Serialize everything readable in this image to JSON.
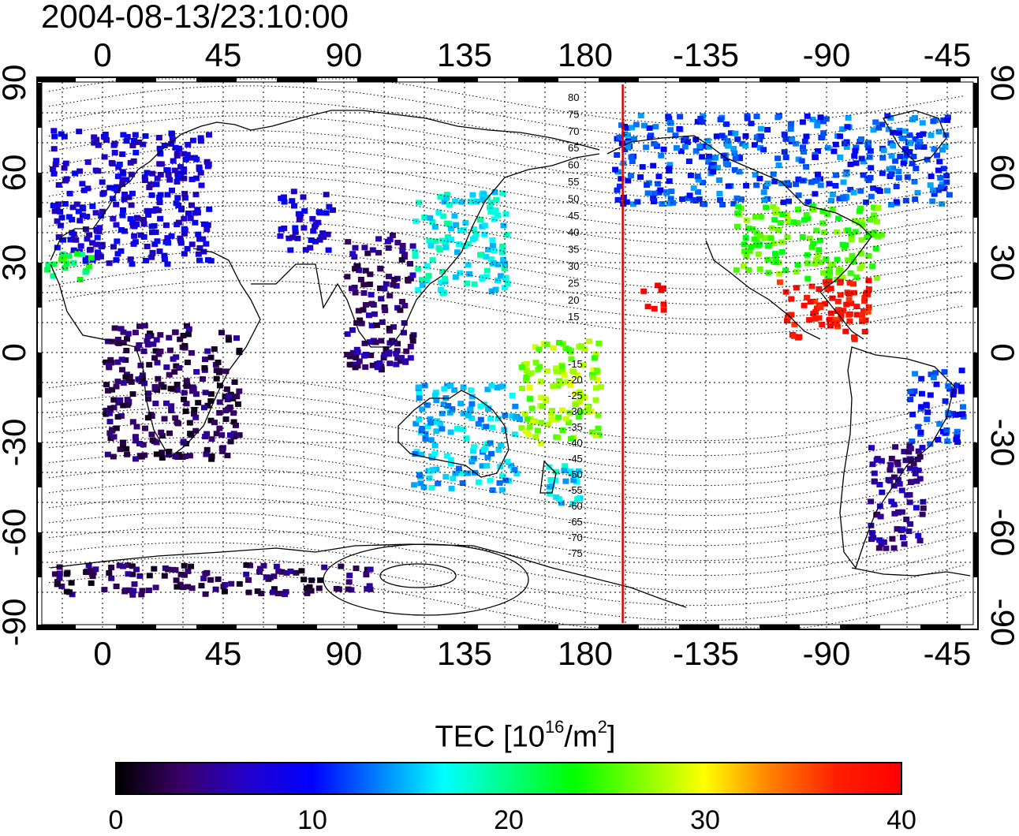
{
  "header": {
    "timestamp": "2004-08-13/23:10:00"
  },
  "map": {
    "lon_ticks": [
      "0",
      "45",
      "90",
      "135",
      "180",
      "-135",
      "-90",
      "-45"
    ],
    "lat_ticks": [
      "90",
      "60",
      "30",
      "0",
      "-30",
      "-60",
      "-90"
    ],
    "dip_latitude_labels": [
      "80",
      "75",
      "70",
      "65",
      "60",
      "55",
      "50",
      "45",
      "40",
      "35",
      "30",
      "25",
      "20",
      "15",
      "-15",
      "-20",
      "-25",
      "-30",
      "-35",
      "-40",
      "-45",
      "-50",
      "-55",
      "-60",
      "-65",
      "-70",
      "-75"
    ],
    "marker_line": {
      "longitude": 194,
      "color": "#dd0000"
    }
  },
  "colorbar": {
    "title_prefix": "TEC  [10",
    "title_exp1": "16",
    "title_mid": "/m",
    "title_exp2": "2",
    "title_suffix": "]",
    "ticks": [
      "0",
      "10",
      "20",
      "30",
      "40"
    ],
    "range": [
      0,
      40
    ],
    "colormap": [
      "#000000",
      "#3a0068",
      "#2200cc",
      "#0000ff",
      "#0080ff",
      "#00ffff",
      "#00ff80",
      "#00ff00",
      "#80ff00",
      "#ffff00",
      "#ff8000",
      "#ff2000",
      "#ff0000"
    ]
  },
  "chart_data": {
    "type": "heatmap",
    "title": "2004-08-13/23:10:00",
    "quantity": "TEC  [10^16/m^2]",
    "xlim": [
      -25,
      325
    ],
    "ylim": [
      -90,
      90
    ],
    "colorbar_range": [
      0,
      40
    ],
    "regions": [
      {
        "lon": [
          -20,
          40
        ],
        "lat": [
          30,
          75
        ],
        "tec": 8
      },
      {
        "lon": [
          -22,
          -5
        ],
        "lat": [
          25,
          35
        ],
        "tec": 22
      },
      {
        "lon": [
          65,
          85
        ],
        "lat": [
          35,
          55
        ],
        "tec": 8
      },
      {
        "lon": [
          115,
          150
        ],
        "lat": [
          20,
          55
        ],
        "tec": 17
      },
      {
        "lon": [
          90,
          115
        ],
        "lat": [
          -5,
          40
        ],
        "tec": 4
      },
      {
        "lon": [
          0,
          50
        ],
        "lat": [
          -35,
          10
        ],
        "tec": 3
      },
      {
        "lon": [
          115,
          155
        ],
        "lat": [
          -45,
          -10
        ],
        "tec": 15
      },
      {
        "lon": [
          165,
          180
        ],
        "lat": [
          -50,
          -35
        ],
        "tec": 16
      },
      {
        "lon": [
          155,
          185
        ],
        "lat": [
          -30,
          5
        ],
        "tec": 27
      },
      {
        "lon": [
          -170,
          -45
        ],
        "lat": [
          50,
          80
        ],
        "tec": 12
      },
      {
        "lon": [
          -125,
          -70
        ],
        "lat": [
          25,
          50
        ],
        "tec": 25
      },
      {
        "lon": [
          -110,
          -75
        ],
        "lat": [
          5,
          25
        ],
        "tec": 38
      },
      {
        "lon": [
          -160,
          -150
        ],
        "lat": [
          15,
          25
        ],
        "tec": 40
      },
      {
        "lon": [
          -60,
          -40
        ],
        "lat": [
          -30,
          -5
        ],
        "tec": 11
      },
      {
        "lon": [
          -75,
          -55
        ],
        "lat": [
          -65,
          -30
        ],
        "tec": 5
      },
      {
        "lon": [
          -20,
          100
        ],
        "lat": [
          -80,
          -70
        ],
        "tec": 3
      }
    ]
  }
}
